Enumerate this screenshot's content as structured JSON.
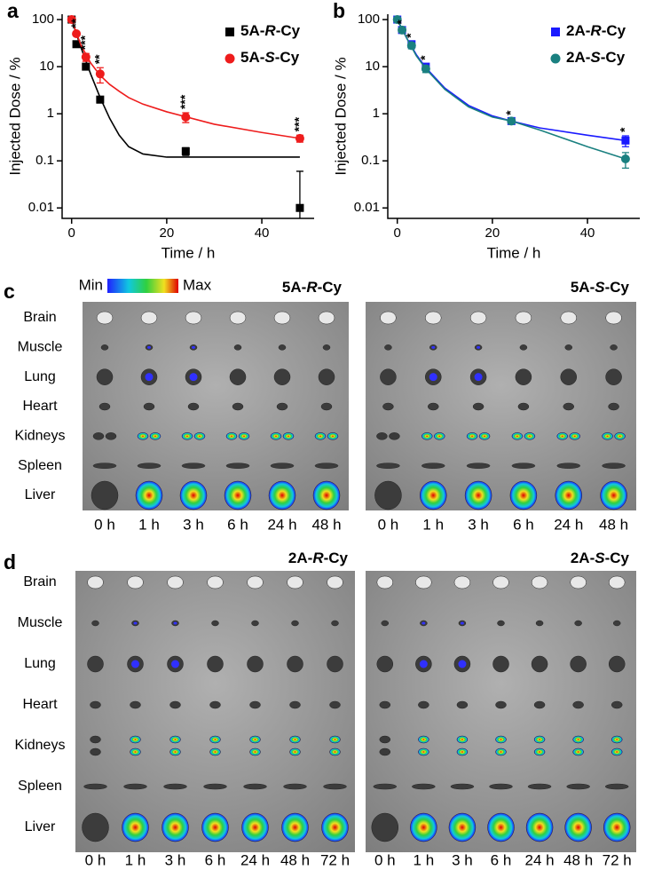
{
  "chart_data": [
    {
      "type": "line",
      "panel_label": "a",
      "ylabel": "Injected Dose / %",
      "xlabel": "Time / h",
      "xlim": [
        -2,
        51
      ],
      "xticks": [
        0,
        20,
        40
      ],
      "ylim": [
        0.006,
        130
      ],
      "yticks": [
        0.01,
        0.1,
        1,
        10,
        100
      ],
      "log_y": true,
      "legend": "upper right",
      "series": [
        {
          "name": "5A-R-Cy",
          "color": "#000000",
          "marker": "square",
          "x": [
            0,
            1,
            3,
            6,
            24,
            48
          ],
          "values": [
            100,
            30,
            10,
            2,
            0.16,
            0.01
          ],
          "errors": [
            8,
            3,
            1,
            0.3,
            0.03,
            0.05
          ],
          "fit_x": [
            0,
            2,
            4,
            6,
            8,
            10,
            12,
            15,
            20,
            30,
            40,
            48
          ],
          "fit": [
            100,
            25,
            7,
            2.2,
            0.8,
            0.35,
            0.2,
            0.14,
            0.12,
            0.12,
            0.12,
            0.12
          ]
        },
        {
          "name": "5A-S-Cy",
          "color": "#ee1c1c",
          "marker": "circle",
          "x": [
            0,
            1,
            3,
            6,
            24,
            48
          ],
          "values": [
            100,
            50,
            16,
            7,
            0.85,
            0.3
          ],
          "errors": [
            10,
            5,
            3,
            2.5,
            0.2,
            0.05
          ],
          "fit_x": [
            0,
            2,
            4,
            6,
            8,
            10,
            12,
            15,
            20,
            30,
            40,
            48
          ],
          "fit": [
            100,
            28,
            12,
            6.5,
            4.2,
            3,
            2.2,
            1.6,
            1.1,
            0.6,
            0.4,
            0.3
          ]
        }
      ],
      "annotations": [
        {
          "x": 1,
          "text": "**"
        },
        {
          "x": 3,
          "text": "***"
        },
        {
          "x": 6,
          "text": "**"
        },
        {
          "x": 24,
          "text": "***"
        },
        {
          "x": 48,
          "text": "***"
        }
      ]
    },
    {
      "type": "line",
      "panel_label": "b",
      "ylabel": "Injected Dose / %",
      "xlabel": "Time / h",
      "xlim": [
        -2,
        51
      ],
      "xticks": [
        0,
        20,
        40
      ],
      "ylim": [
        0.006,
        130
      ],
      "yticks": [
        0.01,
        0.1,
        1,
        10,
        100
      ],
      "log_y": true,
      "legend": "upper right",
      "series": [
        {
          "name": "2A-R-Cy",
          "color": "#1a1aff",
          "marker": "square",
          "x": [
            0,
            1,
            3,
            6,
            24,
            48
          ],
          "values": [
            100,
            60,
            30,
            10,
            0.7,
            0.27
          ],
          "errors": [
            10,
            6,
            4,
            1.5,
            0.08,
            0.07
          ],
          "fit_x": [
            0,
            2,
            4,
            6,
            10,
            15,
            20,
            24,
            30,
            40,
            48
          ],
          "fit": [
            100,
            40,
            18,
            9.5,
            3.5,
            1.5,
            0.9,
            0.7,
            0.5,
            0.35,
            0.27
          ]
        },
        {
          "name": "2A-S-Cy",
          "color": "#1a8080",
          "marker": "circle",
          "x": [
            0,
            1,
            3,
            6,
            24,
            48
          ],
          "values": [
            100,
            60,
            28,
            9,
            0.7,
            0.11
          ],
          "errors": [
            10,
            6,
            4,
            1.5,
            0.08,
            0.04
          ],
          "fit_x": [
            0,
            2,
            4,
            6,
            10,
            15,
            20,
            24,
            30,
            40,
            48
          ],
          "fit": [
            100,
            40,
            17,
            9,
            3.3,
            1.4,
            0.85,
            0.7,
            0.45,
            0.2,
            0.11
          ]
        }
      ],
      "annotations": [
        {
          "x": 1,
          "text": "*"
        },
        {
          "x": 3,
          "text": "*"
        },
        {
          "x": 6,
          "text": "*"
        },
        {
          "x": 24,
          "text": "*"
        },
        {
          "x": 48,
          "text": "*"
        }
      ]
    }
  ],
  "imaging": [
    {
      "label": "c",
      "colorbar": [
        "Min",
        "Max"
      ],
      "panels": [
        "5A-R-Cy",
        "5A-S-Cy"
      ],
      "rows": [
        "Brain",
        "Muscle",
        "Lung",
        "Heart",
        "Kidneys",
        "Spleen",
        "Liver"
      ],
      "columns": [
        "0 h",
        "1 h",
        "3 h",
        "6 h",
        "24 h",
        "48 h"
      ]
    },
    {
      "label": "d",
      "panels": [
        "2A-R-Cy",
        "2A-S-Cy"
      ],
      "rows": [
        "Brain",
        "Muscle",
        "Lung",
        "Heart",
        "Kidneys",
        "Spleen",
        "Liver"
      ],
      "columns": [
        "0 h",
        "1 h",
        "3 h",
        "6 h",
        "24 h",
        "48 h",
        "72 h"
      ]
    }
  ]
}
